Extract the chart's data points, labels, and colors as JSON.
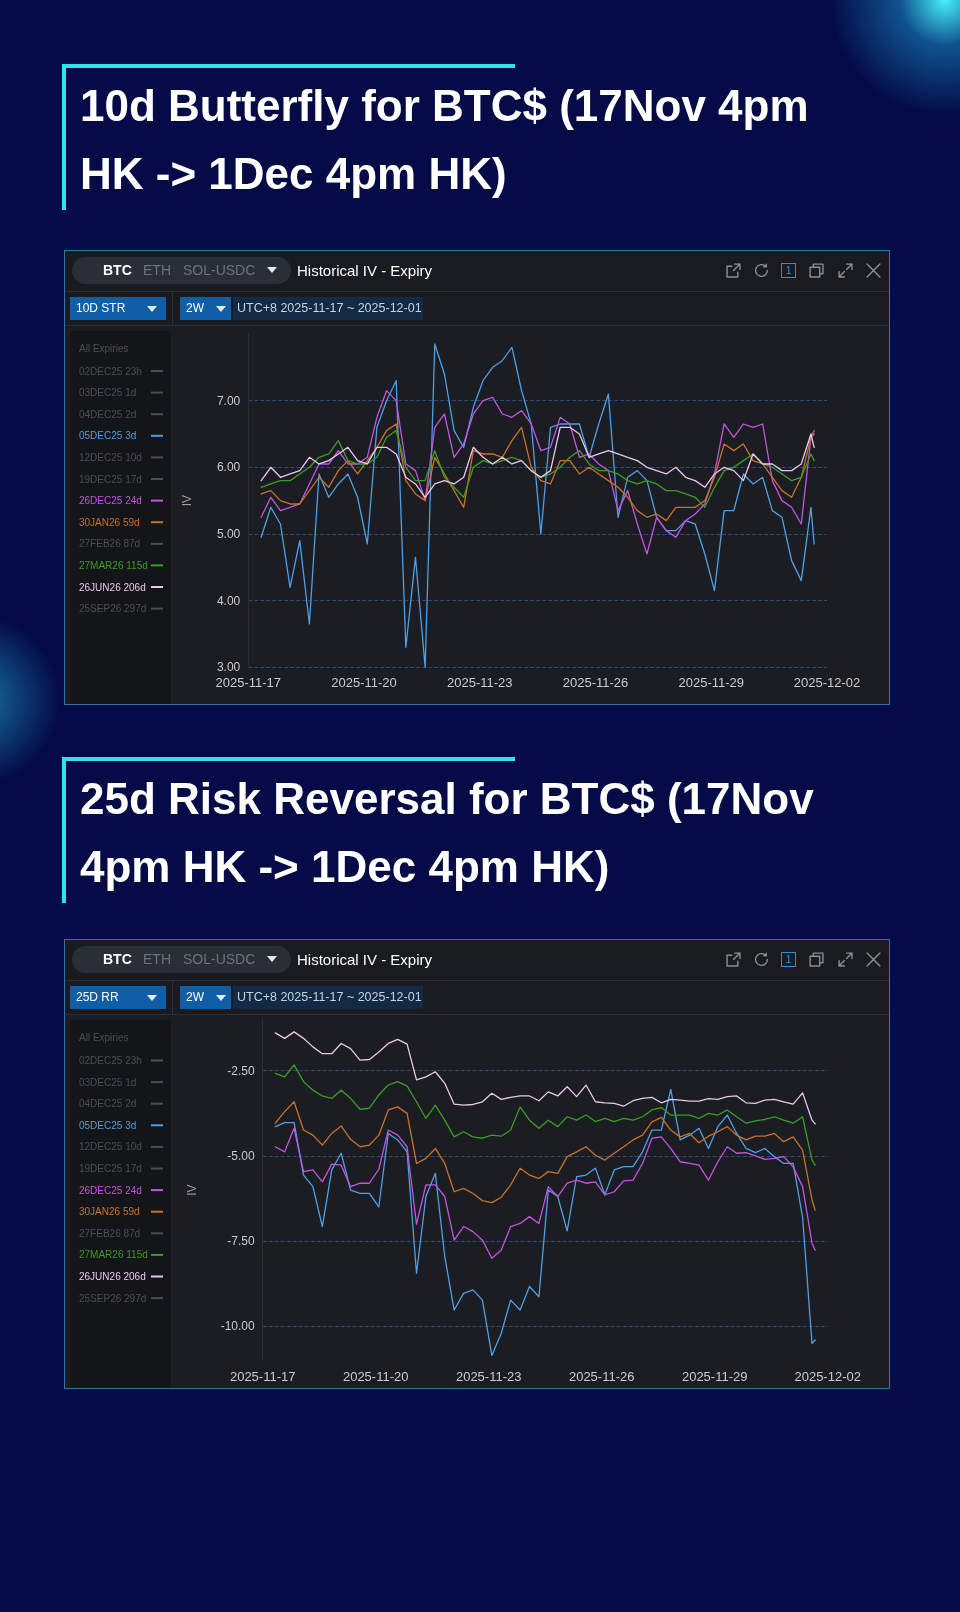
{
  "chart_data": [
    {
      "type": "line",
      "title": "10d Butterfly for BTC$ (17Nov 4pm HK -> 1Dec 4pm HK)",
      "ylabel": "IV",
      "legend_title": "All Expiries",
      "annotations": [
        "BTC",
        "ETH",
        "SOL-USDC",
        "Historical IV - Expiry",
        "10D STR",
        "2W",
        "UTC+8 2025-11-17 ~ 2025-12-01",
        "1"
      ],
      "x": [
        "2025-11-17T08:00",
        "2025-11-17T14:00",
        "2025-11-17T20:00",
        "2025-11-18T02:00",
        "2025-11-18T08:00",
        "2025-11-18T14:00",
        "2025-11-18T20:00",
        "2025-11-19T02:00",
        "2025-11-19T08:00",
        "2025-11-19T14:00",
        "2025-11-19T20:00",
        "2025-11-20T02:00",
        "2025-11-20T08:00",
        "2025-11-20T14:00",
        "2025-11-20T20:00",
        "2025-11-21T02:00",
        "2025-11-21T08:00",
        "2025-11-21T14:00",
        "2025-11-21T20:00",
        "2025-11-22T02:00",
        "2025-11-22T08:00",
        "2025-11-22T14:00",
        "2025-11-22T20:00",
        "2025-11-23T02:00",
        "2025-11-23T08:00",
        "2025-11-23T14:00",
        "2025-11-23T20:00",
        "2025-11-24T02:00",
        "2025-11-24T08:00",
        "2025-11-24T14:00",
        "2025-11-24T20:00",
        "2025-11-25T02:00",
        "2025-11-25T08:00",
        "2025-11-25T14:00",
        "2025-11-25T20:00",
        "2025-11-26T02:00",
        "2025-11-26T08:00",
        "2025-11-26T14:00",
        "2025-11-26T20:00",
        "2025-11-27T02:00",
        "2025-11-27T08:00",
        "2025-11-27T14:00",
        "2025-11-27T20:00",
        "2025-11-28T02:00",
        "2025-11-28T08:00",
        "2025-11-28T14:00",
        "2025-11-28T20:00",
        "2025-11-29T02:00",
        "2025-11-29T08:00",
        "2025-11-29T14:00",
        "2025-11-29T20:00",
        "2025-11-30T02:00",
        "2025-11-30T08:00",
        "2025-11-30T14:00",
        "2025-11-30T20:00",
        "2025-12-01T02:00",
        "2025-12-01T08:00",
        "2025-12-01T14:00",
        "2025-12-01T16:00"
      ],
      "xlim": [
        "2025-11-17",
        "2025-12-02"
      ],
      "xticks": [
        "2025-11-17",
        "2025-11-20",
        "2025-11-23",
        "2025-11-26",
        "2025-11-29",
        "2025-12-02"
      ],
      "ylim": [
        3,
        8
      ],
      "yticks": [
        {
          "value": 3,
          "label": "3.00"
        },
        {
          "value": 4,
          "label": "4.00"
        },
        {
          "value": 5,
          "label": "5.00"
        },
        {
          "value": 6,
          "label": "6.00"
        },
        {
          "value": 7,
          "label": "7.00"
        }
      ],
      "grid": "y",
      "legend": "left",
      "marker": "none",
      "series": [
        {
          "name": "02DEC25 23h",
          "color": "#4b4e57",
          "values": [
            null,
            null,
            null,
            null,
            null,
            null,
            null,
            null,
            null,
            null,
            null,
            null,
            null,
            null,
            null,
            null,
            null,
            null,
            null,
            null,
            null,
            null,
            null,
            null,
            null,
            null,
            null,
            null,
            null,
            null,
            null,
            null,
            null,
            null,
            null,
            null,
            null,
            null,
            null,
            null,
            null,
            null,
            null,
            null,
            null,
            null,
            null,
            null,
            null,
            null,
            null,
            null,
            null,
            null,
            null,
            null,
            null,
            null,
            null
          ]
        },
        {
          "name": "03DEC25 1d",
          "color": "#4b4e57",
          "values": [
            null,
            null,
            null,
            null,
            null,
            null,
            null,
            null,
            null,
            null,
            null,
            null,
            null,
            null,
            null,
            null,
            null,
            null,
            null,
            null,
            null,
            null,
            null,
            null,
            null,
            null,
            null,
            null,
            null,
            null,
            null,
            null,
            null,
            null,
            null,
            null,
            null,
            null,
            null,
            null,
            null,
            null,
            null,
            null,
            null,
            null,
            null,
            null,
            null,
            null,
            null,
            null,
            null,
            null,
            null,
            null,
            null,
            null,
            null
          ]
        },
        {
          "name": "04DEC25 2d",
          "color": "#4b4e57",
          "values": [
            null,
            null,
            null,
            null,
            null,
            null,
            null,
            null,
            null,
            null,
            null,
            null,
            null,
            null,
            null,
            null,
            null,
            null,
            null,
            null,
            null,
            null,
            null,
            null,
            null,
            null,
            null,
            null,
            null,
            null,
            null,
            null,
            null,
            null,
            null,
            null,
            null,
            null,
            null,
            null,
            null,
            null,
            null,
            null,
            null,
            null,
            null,
            null,
            null,
            null,
            null,
            null,
            null,
            null,
            null,
            null,
            null,
            null,
            null
          ]
        },
        {
          "name": "05DEC25 3d",
          "color": "#4f9fe6",
          "values": [
            4.95,
            5.4,
            5.15,
            4.2,
            4.9,
            3.65,
            5.9,
            5.55,
            5.75,
            5.9,
            5.55,
            4.85,
            6.6,
            7.0,
            7.3,
            3.3,
            4.65,
            3.0,
            7.85,
            7.4,
            6.55,
            6.3,
            6.9,
            7.3,
            7.5,
            7.6,
            7.8,
            7.15,
            6.65,
            5.0,
            6.6,
            6.65,
            6.65,
            6.65,
            6.15,
            6.65,
            7.1,
            5.25,
            5.85,
            5.95,
            5.8,
            5.25,
            5.05,
            5.05,
            5.2,
            5.15,
            4.7,
            4.15,
            5.35,
            5.35,
            5.9,
            5.75,
            5.85,
            5.35,
            5.25,
            4.6,
            4.3,
            5.4,
            4.85
          ]
        },
        {
          "name": "12DEC25 10d",
          "color": "#4b4e57",
          "values": [
            null,
            null,
            null,
            null,
            null,
            null,
            null,
            null,
            null,
            null,
            null,
            null,
            null,
            null,
            null,
            null,
            null,
            null,
            null,
            null,
            null,
            null,
            null,
            null,
            null,
            null,
            null,
            null,
            null,
            null,
            null,
            null,
            null,
            null,
            null,
            null,
            null,
            null,
            null,
            null,
            null,
            null,
            null,
            null,
            null,
            null,
            null,
            null,
            null,
            null,
            null,
            null,
            null,
            null,
            null,
            null,
            null,
            null,
            null
          ]
        },
        {
          "name": "19DEC25 17d",
          "color": "#4b4e57",
          "values": [
            null,
            null,
            null,
            null,
            null,
            null,
            null,
            null,
            null,
            null,
            null,
            null,
            null,
            null,
            null,
            null,
            null,
            null,
            null,
            null,
            null,
            null,
            null,
            null,
            null,
            null,
            null,
            null,
            null,
            null,
            null,
            null,
            null,
            null,
            null,
            null,
            null,
            null,
            null,
            null,
            null,
            null,
            null,
            null,
            null,
            null,
            null,
            null,
            null,
            null,
            null,
            null,
            null,
            null,
            null,
            null,
            null,
            null,
            null
          ]
        },
        {
          "name": "26DEC25 24d",
          "color": "#c355e0",
          "values": [
            5.25,
            5.55,
            5.35,
            5.4,
            5.45,
            5.75,
            6.05,
            6.05,
            6.25,
            6.05,
            6.05,
            6.15,
            6.75,
            7.15,
            7.0,
            6.05,
            5.95,
            5.5,
            6.6,
            6.8,
            6.15,
            6.35,
            6.8,
            7.0,
            7.05,
            6.8,
            6.75,
            6.85,
            6.65,
            6.25,
            6.3,
            6.75,
            6.65,
            6.15,
            6.2,
            6.05,
            5.95,
            5.35,
            5.65,
            5.15,
            4.7,
            5.25,
            5.05,
            4.95,
            5.2,
            5.3,
            5.45,
            5.9,
            6.65,
            6.45,
            6.65,
            6.6,
            6.65,
            5.8,
            5.5,
            5.4,
            5.15,
            6.45,
            6.5
          ]
        },
        {
          "name": "30JAN26 59d",
          "color": "#c9712a",
          "values": [
            5.6,
            5.65,
            5.5,
            5.45,
            5.45,
            5.65,
            5.85,
            5.7,
            5.95,
            6.1,
            5.9,
            6.1,
            6.3,
            6.55,
            6.65,
            5.8,
            5.6,
            5.5,
            6.15,
            5.9,
            5.65,
            5.4,
            6.25,
            6.2,
            6.2,
            6.15,
            6.4,
            6.6,
            6.0,
            5.8,
            5.75,
            6.1,
            6.1,
            5.9,
            6.0,
            5.9,
            5.8,
            5.7,
            5.55,
            5.35,
            5.25,
            5.3,
            5.2,
            5.4,
            5.4,
            5.4,
            5.5,
            5.85,
            6.35,
            6.25,
            6.35,
            6.1,
            6.05,
            5.85,
            5.65,
            5.55,
            5.85,
            6.45,
            6.55
          ]
        },
        {
          "name": "27FEB26 87d",
          "color": "#4b4e57",
          "values": [
            null,
            null,
            null,
            null,
            null,
            null,
            null,
            null,
            null,
            null,
            null,
            null,
            null,
            null,
            null,
            null,
            null,
            null,
            null,
            null,
            null,
            null,
            null,
            null,
            null,
            null,
            null,
            null,
            null,
            null,
            null,
            null,
            null,
            null,
            null,
            null,
            null,
            null,
            null,
            null,
            null,
            null,
            null,
            null,
            null,
            null,
            null,
            null,
            null,
            null,
            null,
            null,
            null,
            null,
            null,
            null,
            null,
            null,
            null
          ]
        },
        {
          "name": "27MAR26 115d",
          "color": "#3a9e25",
          "values": [
            5.7,
            5.75,
            5.8,
            5.8,
            5.9,
            6.0,
            6.15,
            6.2,
            6.4,
            6.1,
            6.05,
            6.05,
            6.15,
            6.45,
            6.55,
            6.0,
            5.8,
            5.8,
            6.25,
            5.85,
            5.7,
            5.55,
            6.0,
            6.1,
            6.05,
            6.1,
            6.15,
            6.1,
            5.95,
            5.85,
            5.9,
            6.0,
            6.15,
            6.25,
            6.05,
            5.95,
            5.95,
            5.9,
            5.8,
            5.75,
            5.8,
            5.75,
            5.65,
            5.65,
            5.6,
            5.55,
            5.4,
            5.7,
            5.95,
            6.0,
            6.1,
            6.2,
            6.05,
            6.0,
            5.9,
            5.8,
            5.85,
            6.2,
            6.1
          ]
        },
        {
          "name": "26JUN26 206d",
          "color": "#ecc6ee",
          "values": [
            5.8,
            6.0,
            5.85,
            5.9,
            5.95,
            6.15,
            6.05,
            6.1,
            6.2,
            6.3,
            6.1,
            6.05,
            6.3,
            6.3,
            6.2,
            5.85,
            5.75,
            5.55,
            5.75,
            5.8,
            5.75,
            5.85,
            6.3,
            6.15,
            6.05,
            6.15,
            6.05,
            6.1,
            5.95,
            5.85,
            5.95,
            6.6,
            6.6,
            6.5,
            6.15,
            6.2,
            6.25,
            6.2,
            6.15,
            6.1,
            6.0,
            5.95,
            5.9,
            6.0,
            5.85,
            5.8,
            5.7,
            5.9,
            6.0,
            5.95,
            5.8,
            6.2,
            6.05,
            6.05,
            5.95,
            5.95,
            6.05,
            6.5,
            6.3
          ]
        },
        {
          "name": "25SEP26 297d",
          "color": "#4b4e57",
          "values": [
            null,
            null,
            null,
            null,
            null,
            null,
            null,
            null,
            null,
            null,
            null,
            null,
            null,
            null,
            null,
            null,
            null,
            null,
            null,
            null,
            null,
            null,
            null,
            null,
            null,
            null,
            null,
            null,
            null,
            null,
            null,
            null,
            null,
            null,
            null,
            null,
            null,
            null,
            null,
            null,
            null,
            null,
            null,
            null,
            null,
            null,
            null,
            null,
            null,
            null,
            null,
            null,
            null,
            null,
            null,
            null,
            null,
            null,
            null
          ]
        }
      ]
    },
    {
      "type": "line",
      "title": "25d Risk Reversal for BTC$ (17Nov 4pm HK -> 1Dec 4pm HK)",
      "ylabel": "IV",
      "legend_title": "All Expiries",
      "annotations": [
        "BTC",
        "ETH",
        "SOL-USDC",
        "Historical IV - Expiry",
        "25D RR",
        "2W",
        "UTC+8 2025-11-17 ~ 2025-12-01",
        "1"
      ],
      "x": [
        "2025-11-17T08:00",
        "2025-11-17T14:00",
        "2025-11-17T20:00",
        "2025-11-18T02:00",
        "2025-11-18T08:00",
        "2025-11-18T14:00",
        "2025-11-18T20:00",
        "2025-11-19T02:00",
        "2025-11-19T08:00",
        "2025-11-19T14:00",
        "2025-11-19T20:00",
        "2025-11-20T02:00",
        "2025-11-20T08:00",
        "2025-11-20T14:00",
        "2025-11-20T20:00",
        "2025-11-21T02:00",
        "2025-11-21T08:00",
        "2025-11-21T14:00",
        "2025-11-21T20:00",
        "2025-11-22T02:00",
        "2025-11-22T08:00",
        "2025-11-22T14:00",
        "2025-11-22T20:00",
        "2025-11-23T02:00",
        "2025-11-23T08:00",
        "2025-11-23T14:00",
        "2025-11-23T20:00",
        "2025-11-24T02:00",
        "2025-11-24T08:00",
        "2025-11-24T14:00",
        "2025-11-24T20:00",
        "2025-11-25T02:00",
        "2025-11-25T08:00",
        "2025-11-25T14:00",
        "2025-11-25T20:00",
        "2025-11-26T02:00",
        "2025-11-26T08:00",
        "2025-11-26T14:00",
        "2025-11-26T20:00",
        "2025-11-27T02:00",
        "2025-11-27T08:00",
        "2025-11-27T14:00",
        "2025-11-27T20:00",
        "2025-11-28T02:00",
        "2025-11-28T08:00",
        "2025-11-28T14:00",
        "2025-11-28T20:00",
        "2025-11-29T02:00",
        "2025-11-29T08:00",
        "2025-11-29T14:00",
        "2025-11-29T20:00",
        "2025-11-30T02:00",
        "2025-11-30T08:00",
        "2025-11-30T14:00",
        "2025-11-30T20:00",
        "2025-12-01T02:00",
        "2025-12-01T08:00",
        "2025-12-01T14:00",
        "2025-12-01T16:00"
      ],
      "xlim": [
        "2025-11-17",
        "2025-12-02"
      ],
      "xticks": [
        "2025-11-17",
        "2025-11-20",
        "2025-11-23",
        "2025-11-26",
        "2025-11-29",
        "2025-12-02"
      ],
      "ylim": [
        -11,
        -1
      ],
      "yticks": [
        {
          "value": -10,
          "label": "-10.00"
        },
        {
          "value": -7.5,
          "label": "-7.50"
        },
        {
          "value": -5,
          "label": "-5.00"
        },
        {
          "value": -2.5,
          "label": "-2.50"
        }
      ],
      "grid": "y",
      "legend": "left",
      "marker": "none",
      "series": [
        {
          "name": "02DEC25 23h",
          "color": "#4b4e57",
          "values": [
            null,
            null,
            null,
            null,
            null,
            null,
            null,
            null,
            null,
            null,
            null,
            null,
            null,
            null,
            null,
            null,
            null,
            null,
            null,
            null,
            null,
            null,
            null,
            null,
            null,
            null,
            null,
            null,
            null,
            null,
            null,
            null,
            null,
            null,
            null,
            null,
            null,
            null,
            null,
            null,
            null,
            null,
            null,
            null,
            null,
            null,
            null,
            null,
            null,
            null,
            null,
            null,
            null,
            null,
            null,
            null,
            null,
            null,
            null
          ]
        },
        {
          "name": "03DEC25 1d",
          "color": "#4b4e57",
          "values": [
            null,
            null,
            null,
            null,
            null,
            null,
            null,
            null,
            null,
            null,
            null,
            null,
            null,
            null,
            null,
            null,
            null,
            null,
            null,
            null,
            null,
            null,
            null,
            null,
            null,
            null,
            null,
            null,
            null,
            null,
            null,
            null,
            null,
            null,
            null,
            null,
            null,
            null,
            null,
            null,
            null,
            null,
            null,
            null,
            null,
            null,
            null,
            null,
            null,
            null,
            null,
            null,
            null,
            null,
            null,
            null,
            null,
            null,
            null
          ]
        },
        {
          "name": "04DEC25 2d",
          "color": "#4b4e57",
          "values": [
            null,
            null,
            null,
            null,
            null,
            null,
            null,
            null,
            null,
            null,
            null,
            null,
            null,
            null,
            null,
            null,
            null,
            null,
            null,
            null,
            null,
            null,
            null,
            null,
            null,
            null,
            null,
            null,
            null,
            null,
            null,
            null,
            null,
            null,
            null,
            null,
            null,
            null,
            null,
            null,
            null,
            null,
            null,
            null,
            null,
            null,
            null,
            null,
            null,
            null,
            null,
            null,
            null,
            null,
            null,
            null,
            null,
            null,
            null
          ]
        },
        {
          "name": "05DEC25 3d",
          "color": "#4f9fe6",
          "values": [
            -4.14,
            -4.02,
            -4.02,
            -5.56,
            -5.9,
            -7.07,
            -5.41,
            -4.92,
            -6.0,
            -6.1,
            -6.1,
            -6.49,
            -4.34,
            -4.53,
            -4.88,
            -8.44,
            -6.19,
            -5.51,
            -7.95,
            -9.52,
            -9.03,
            -8.93,
            -9.23,
            -10.85,
            -10.2,
            -9.23,
            -9.52,
            -8.83,
            -9.13,
            -6.0,
            -6.19,
            -7.2,
            -5.61,
            -5.56,
            -5.36,
            -6.14,
            -5.41,
            -5.31,
            -5.31,
            -4.88,
            -4.24,
            -4.24,
            -3.05,
            -4.53,
            -4.39,
            -4.19,
            -4.78,
            -4.14,
            -3.8,
            -4.34,
            -4.78,
            -4.9,
            -4.78,
            -5.02,
            -5.22,
            -5.22,
            -6.8,
            -10.5,
            -10.4
          ]
        },
        {
          "name": "12DEC25 10d",
          "color": "#4b4e57",
          "values": [
            null,
            null,
            null,
            null,
            null,
            null,
            null,
            null,
            null,
            null,
            null,
            null,
            null,
            null,
            null,
            null,
            null,
            null,
            null,
            null,
            null,
            null,
            null,
            null,
            null,
            null,
            null,
            null,
            null,
            null,
            null,
            null,
            null,
            null,
            null,
            null,
            null,
            null,
            null,
            null,
            null,
            null,
            null,
            null,
            null,
            null,
            null,
            null,
            null,
            null,
            null,
            null,
            null,
            null,
            null,
            null,
            null,
            null,
            null
          ]
        },
        {
          "name": "19DEC25 17d",
          "color": "#4b4e57",
          "values": [
            null,
            null,
            null,
            null,
            null,
            null,
            null,
            null,
            null,
            null,
            null,
            null,
            null,
            null,
            null,
            null,
            null,
            null,
            null,
            null,
            null,
            null,
            null,
            null,
            null,
            null,
            null,
            null,
            null,
            null,
            null,
            null,
            null,
            null,
            null,
            null,
            null,
            null,
            null,
            null,
            null,
            null,
            null,
            null,
            null,
            null,
            null,
            null,
            null,
            null,
            null,
            null,
            null,
            null,
            null,
            null,
            null,
            null,
            null
          ]
        },
        {
          "name": "26DEC25 24d",
          "color": "#c355e0",
          "values": [
            -4.73,
            -4.88,
            -4.19,
            -5.46,
            -5.41,
            -5.76,
            -5.24,
            -5.27,
            -5.9,
            -5.8,
            -5.8,
            -5.39,
            -4.24,
            -4.39,
            -4.73,
            -7.0,
            -5.85,
            -5.85,
            -6.19,
            -7.47,
            -7.07,
            -7.22,
            -7.47,
            -8.0,
            -7.76,
            -7.07,
            -6.98,
            -6.78,
            -6.98,
            -5.9,
            -6.19,
            -5.8,
            -5.71,
            -5.8,
            -5.76,
            -6.14,
            -6.05,
            -5.73,
            -5.71,
            -5.22,
            -4.48,
            -4.44,
            -4.78,
            -5.17,
            -5.22,
            -5.27,
            -5.71,
            -5.17,
            -4.73,
            -4.92,
            -4.9,
            -5.0,
            -5.1,
            -5.07,
            -5.02,
            -5.32,
            -5.9,
            -7.56,
            -7.76
          ]
        },
        {
          "name": "30JAN26 59d",
          "color": "#c9712a",
          "values": [
            -4.04,
            -3.7,
            -3.41,
            -4.24,
            -4.39,
            -4.68,
            -4.34,
            -4.12,
            -4.51,
            -4.73,
            -4.68,
            -4.39,
            -3.65,
            -3.56,
            -3.75,
            -5.22,
            -5.07,
            -4.78,
            -5.22,
            -6.05,
            -5.95,
            -6.1,
            -6.31,
            -6.37,
            -6.21,
            -5.85,
            -5.36,
            -5.56,
            -5.66,
            -5.46,
            -5.51,
            -5.02,
            -4.88,
            -4.73,
            -4.98,
            -5.12,
            -4.92,
            -4.73,
            -4.53,
            -4.39,
            -4.0,
            -3.87,
            -4.24,
            -4.44,
            -4.34,
            -4.61,
            -4.42,
            -4.29,
            -4.14,
            -4.39,
            -4.53,
            -4.42,
            -4.42,
            -4.34,
            -4.58,
            -4.44,
            -4.83,
            -6.29,
            -6.59
          ]
        },
        {
          "name": "27FEB26 87d",
          "color": "#4b4e57",
          "values": [
            null,
            null,
            null,
            null,
            null,
            null,
            null,
            null,
            null,
            null,
            null,
            null,
            null,
            null,
            null,
            null,
            null,
            null,
            null,
            null,
            null,
            null,
            null,
            null,
            null,
            null,
            null,
            null,
            null,
            null,
            null,
            null,
            null,
            null,
            null,
            null,
            null,
            null,
            null,
            null,
            null,
            null,
            null,
            null,
            null,
            null,
            null,
            null,
            null,
            null,
            null,
            null,
            null,
            null,
            null,
            null,
            null,
            null,
            null
          ]
        },
        {
          "name": "27MAR26 115d",
          "color": "#3a9e25",
          "values": [
            -2.58,
            -2.68,
            -2.33,
            -2.82,
            -3.07,
            -3.24,
            -3.31,
            -3.07,
            -3.31,
            -3.63,
            -3.6,
            -3.21,
            -2.92,
            -2.82,
            -2.95,
            -3.41,
            -3.9,
            -3.51,
            -3.95,
            -4.44,
            -4.29,
            -4.44,
            -4.48,
            -4.39,
            -4.42,
            -4.24,
            -3.56,
            -3.95,
            -4.19,
            -3.95,
            -4.14,
            -3.85,
            -3.95,
            -3.8,
            -3.99,
            -3.9,
            -3.99,
            -3.9,
            -3.95,
            -3.85,
            -3.65,
            -3.58,
            -3.8,
            -3.8,
            -3.8,
            -3.9,
            -3.75,
            -3.8,
            -3.65,
            -3.85,
            -4.04,
            -3.97,
            -3.93,
            -3.85,
            -3.95,
            -4.04,
            -3.85,
            -5.12,
            -5.27
          ]
        },
        {
          "name": "26JUN26 206d",
          "color": "#ecc6ee",
          "values": [
            -1.39,
            -1.55,
            -1.36,
            -1.55,
            -1.8,
            -2.0,
            -2.0,
            -1.7,
            -1.85,
            -2.19,
            -2.17,
            -1.95,
            -1.7,
            -1.58,
            -1.72,
            -2.77,
            -2.68,
            -2.53,
            -2.87,
            -3.48,
            -3.51,
            -3.49,
            -3.41,
            -3.16,
            -3.34,
            -3.28,
            -3.24,
            -3.24,
            -3.38,
            -3.12,
            -3.24,
            -2.97,
            -3.26,
            -2.92,
            -3.41,
            -3.44,
            -3.46,
            -3.54,
            -3.38,
            -3.31,
            -3.28,
            -3.44,
            -3.34,
            -3.36,
            -3.39,
            -3.39,
            -3.32,
            -3.34,
            -3.26,
            -3.24,
            -3.44,
            -3.46,
            -3.36,
            -3.34,
            -3.41,
            -3.48,
            -3.15,
            -3.95,
            -4.06
          ]
        },
        {
          "name": "25SEP26 297d",
          "color": "#4b4e57",
          "values": [
            null,
            null,
            null,
            null,
            null,
            null,
            null,
            null,
            null,
            null,
            null,
            null,
            null,
            null,
            null,
            null,
            null,
            null,
            null,
            null,
            null,
            null,
            null,
            null,
            null,
            null,
            null,
            null,
            null,
            null,
            null,
            null,
            null,
            null,
            null,
            null,
            null,
            null,
            null,
            null,
            null,
            null,
            null,
            null,
            null,
            null,
            null,
            null,
            null,
            null,
            null,
            null,
            null,
            null,
            null,
            null,
            null,
            null,
            null
          ]
        }
      ]
    }
  ]
}
